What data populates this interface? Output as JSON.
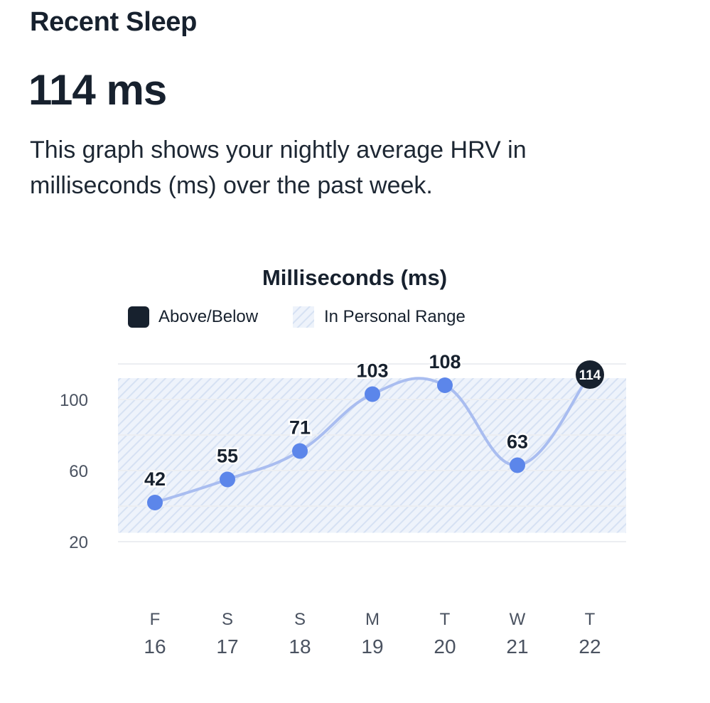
{
  "header": {
    "title": "Recent Sleep",
    "value": "114 ms",
    "description": "This graph shows your nightly average HRV in milliseconds (ms) over the past week."
  },
  "colors": {
    "text": "#17212e",
    "line": "#a9bdf0",
    "point": "#5c86ea",
    "highlight": "#17212e",
    "range_fill": "#eef3fb",
    "range_hatch": "#d6e1f3",
    "grid": "#eceef2"
  },
  "chart_data": {
    "type": "line",
    "title": "Milliseconds (ms)",
    "legend": {
      "placement": "top",
      "items": [
        {
          "label": "Above/Below",
          "marker": "dark-rounded-square"
        },
        {
          "label": "In Personal Range",
          "marker": "hatched-square"
        }
      ]
    },
    "ylim": [
      20,
      120
    ],
    "yticks": [
      20,
      60,
      100
    ],
    "personal_range": [
      25,
      112
    ],
    "grid": true,
    "categories": [
      {
        "day": "F",
        "date": "16"
      },
      {
        "day": "S",
        "date": "17"
      },
      {
        "day": "S",
        "date": "18"
      },
      {
        "day": "M",
        "date": "19"
      },
      {
        "day": "T",
        "date": "20"
      },
      {
        "day": "W",
        "date": "21"
      },
      {
        "day": "T",
        "date": "22"
      }
    ],
    "series": [
      {
        "values": [
          42,
          55,
          71,
          103,
          108,
          63,
          114
        ],
        "labels": [
          "42",
          "55",
          "71",
          "103",
          "108",
          "63",
          "114"
        ],
        "highlight_index": 6
      }
    ]
  }
}
